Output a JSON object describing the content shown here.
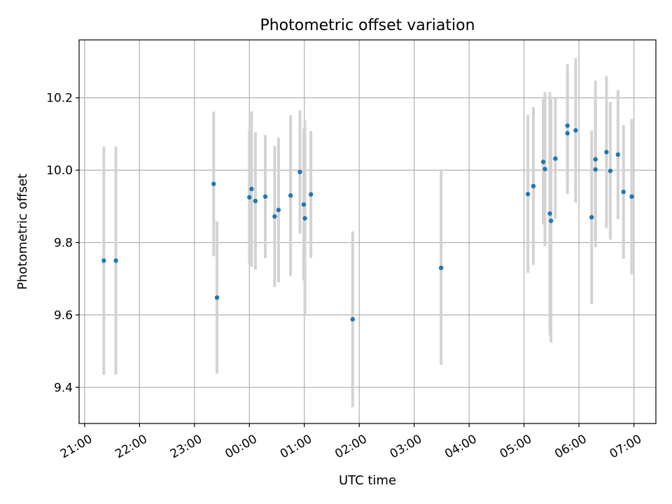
{
  "chart_data": {
    "type": "scatter",
    "title": "Photometric offset variation",
    "xlabel": "UTC time",
    "ylabel": "Photometric offset",
    "x_unit": "hours",
    "xlim": [
      20.9,
      31.4
    ],
    "ylim": [
      9.3,
      10.36
    ],
    "grid": true,
    "x_ticks": [
      {
        "value": 21,
        "label": "21:00"
      },
      {
        "value": 22,
        "label": "22:00"
      },
      {
        "value": 23,
        "label": "23:00"
      },
      {
        "value": 24,
        "label": "00:00"
      },
      {
        "value": 25,
        "label": "01:00"
      },
      {
        "value": 26,
        "label": "02:00"
      },
      {
        "value": 27,
        "label": "03:00"
      },
      {
        "value": 28,
        "label": "04:00"
      },
      {
        "value": 29,
        "label": "05:00"
      },
      {
        "value": 30,
        "label": "06:00"
      },
      {
        "value": 31,
        "label": "07:00"
      }
    ],
    "y_ticks": [
      {
        "value": 9.4,
        "label": "9.4"
      },
      {
        "value": 9.6,
        "label": "9.6"
      },
      {
        "value": 9.8,
        "label": "9.8"
      },
      {
        "value": 10.0,
        "label": "10.0"
      },
      {
        "value": 10.2,
        "label": "10.2"
      }
    ],
    "marker_color": "#1f77b4",
    "errorbar_color": "#d3d3d3",
    "points": [
      {
        "x": 21.35,
        "y": 9.75,
        "err": 0.315
      },
      {
        "x": 21.57,
        "y": 9.75,
        "err": 0.315
      },
      {
        "x": 23.35,
        "y": 9.962,
        "err": 0.2
      },
      {
        "x": 23.41,
        "y": 9.648,
        "err": 0.21
      },
      {
        "x": 24.0,
        "y": 9.925,
        "err": 0.185
      },
      {
        "x": 24.04,
        "y": 9.948,
        "err": 0.215
      },
      {
        "x": 24.11,
        "y": 9.915,
        "err": 0.19
      },
      {
        "x": 24.29,
        "y": 9.927,
        "err": 0.17
      },
      {
        "x": 24.46,
        "y": 9.872,
        "err": 0.195
      },
      {
        "x": 24.53,
        "y": 9.89,
        "err": 0.2
      },
      {
        "x": 24.75,
        "y": 9.93,
        "err": 0.222
      },
      {
        "x": 24.92,
        "y": 9.995,
        "err": 0.17
      },
      {
        "x": 24.99,
        "y": 9.905,
        "err": 0.21
      },
      {
        "x": 25.01,
        "y": 9.867,
        "err": 0.27
      },
      {
        "x": 25.12,
        "y": 9.933,
        "err": 0.175
      },
      {
        "x": 25.88,
        "y": 9.588,
        "err": 0.243
      },
      {
        "x": 27.49,
        "y": 9.73,
        "err": 0.268
      },
      {
        "x": 29.07,
        "y": 9.934,
        "err": 0.218
      },
      {
        "x": 29.17,
        "y": 9.956,
        "err": 0.218
      },
      {
        "x": 29.35,
        "y": 10.023,
        "err": 0.173
      },
      {
        "x": 29.38,
        "y": 10.003,
        "err": 0.213
      },
      {
        "x": 29.47,
        "y": 9.88,
        "err": 0.336
      },
      {
        "x": 29.49,
        "y": 9.86,
        "err": 0.336
      },
      {
        "x": 29.57,
        "y": 10.032,
        "err": 0.166
      },
      {
        "x": 29.79,
        "y": 10.123,
        "err": 0.17
      },
      {
        "x": 29.79,
        "y": 10.102,
        "err": 0.168
      },
      {
        "x": 29.94,
        "y": 10.11,
        "err": 0.2
      },
      {
        "x": 30.23,
        "y": 9.87,
        "err": 0.24
      },
      {
        "x": 30.3,
        "y": 10.03,
        "err": 0.217
      },
      {
        "x": 30.3,
        "y": 10.002,
        "err": 0.215
      },
      {
        "x": 30.5,
        "y": 10.05,
        "err": 0.21
      },
      {
        "x": 30.57,
        "y": 9.998,
        "err": 0.19
      },
      {
        "x": 30.71,
        "y": 10.043,
        "err": 0.178
      },
      {
        "x": 30.81,
        "y": 9.94,
        "err": 0.185
      },
      {
        "x": 30.96,
        "y": 9.927,
        "err": 0.215
      }
    ]
  }
}
